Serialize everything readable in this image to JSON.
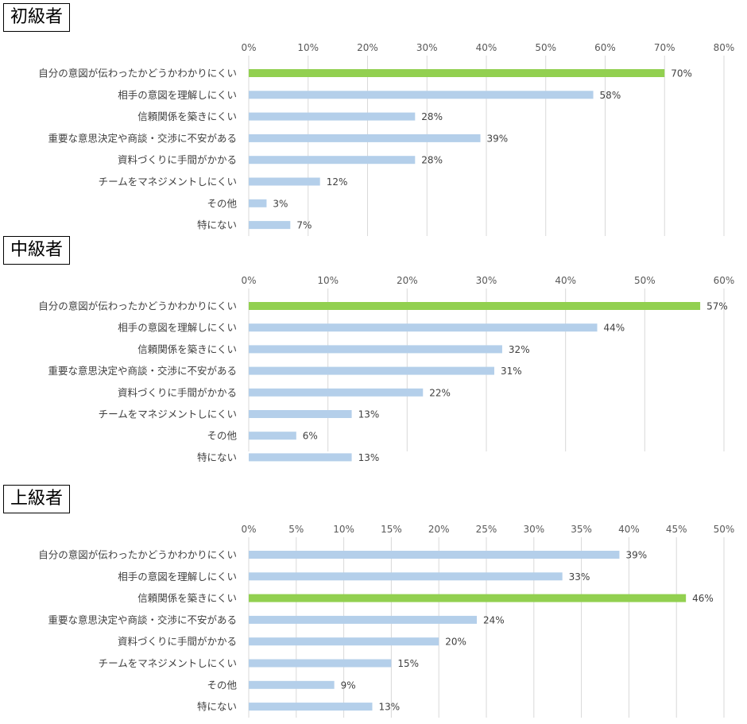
{
  "colors": {
    "highlight": "#92d050",
    "normal": "#b4cfea",
    "grid": "#d9d9d9"
  },
  "chart_data": [
    {
      "type": "bar",
      "orientation": "horizontal",
      "title": "初級者",
      "categories": [
        "自分の意図が伝わったかどうかわかりにくい",
        "相手の意図を理解しにくい",
        "信頼関係を築きにくい",
        "重要な意思決定や商談・交渉に不安がある",
        "資料づくりに手間がかかる",
        "チームをマネジメントしにくい",
        "その他",
        "特にない"
      ],
      "values": [
        70,
        58,
        28,
        39,
        28,
        12,
        3,
        7
      ],
      "value_labels": [
        "70%",
        "58%",
        "28%",
        "39%",
        "28%",
        "12%",
        "3%",
        "7%"
      ],
      "highlight_index": 0,
      "xlim": [
        0,
        80
      ],
      "ticks": [
        "0%",
        "10%",
        "20%",
        "30%",
        "40%",
        "50%",
        "60%",
        "70%",
        "80%"
      ],
      "tick_step": 10,
      "grid": true
    },
    {
      "type": "bar",
      "orientation": "horizontal",
      "title": "中級者",
      "categories": [
        "自分の意図が伝わったかどうかわかりにくい",
        "相手の意図を理解しにくい",
        "信頼関係を築きにくい",
        "重要な意思決定や商談・交渉に不安がある",
        "資料づくりに手間がかかる",
        "チームをマネジメントしにくい",
        "その他",
        "特にない"
      ],
      "values": [
        57,
        44,
        32,
        31,
        22,
        13,
        6,
        13
      ],
      "value_labels": [
        "57%",
        "44%",
        "32%",
        "31%",
        "22%",
        "13%",
        "6%",
        "13%"
      ],
      "highlight_index": 0,
      "xlim": [
        0,
        60
      ],
      "ticks": [
        "0%",
        "10%",
        "20%",
        "30%",
        "40%",
        "50%",
        "60%"
      ],
      "tick_step": 10,
      "grid": true
    },
    {
      "type": "bar",
      "orientation": "horizontal",
      "title": "上級者",
      "categories": [
        "自分の意図が伝わったかどうかわかりにくい",
        "相手の意図を理解しにくい",
        "信頼関係を築きにくい",
        "重要な意思決定や商談・交渉に不安がある",
        "資料づくりに手間がかかる",
        "チームをマネジメントしにくい",
        "その他",
        "特にない"
      ],
      "values": [
        39,
        33,
        46,
        24,
        20,
        15,
        9,
        13
      ],
      "value_labels": [
        "39%",
        "33%",
        "46%",
        "24%",
        "20%",
        "15%",
        "9%",
        "13%"
      ],
      "highlight_index": 2,
      "xlim": [
        0,
        50
      ],
      "ticks": [
        "0%",
        "5%",
        "10%",
        "15%",
        "20%",
        "25%",
        "30%",
        "35%",
        "40%",
        "45%",
        "50%"
      ],
      "tick_step": 5,
      "grid": true
    }
  ]
}
